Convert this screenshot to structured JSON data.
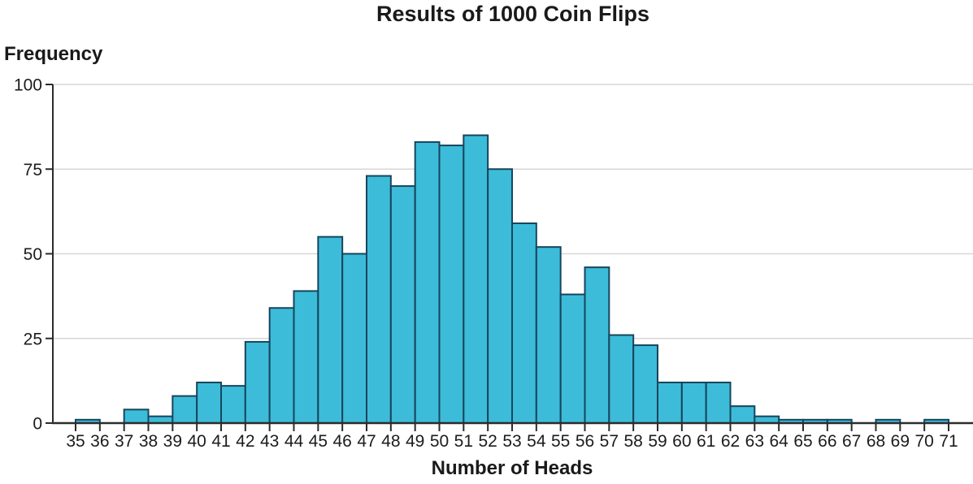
{
  "chart_data": {
    "type": "bar",
    "subtype": "histogram",
    "title": "Results of 1000 Coin Flips",
    "xlabel": "Number of Heads",
    "ylabel": "Frequency",
    "bin_start": 35,
    "bin_width": 1,
    "values": [
      1,
      0,
      4,
      2,
      8,
      12,
      11,
      24,
      34,
      39,
      55,
      50,
      73,
      70,
      83,
      82,
      85,
      75,
      59,
      52,
      38,
      46,
      26,
      23,
      12,
      12,
      12,
      5,
      2,
      1,
      1,
      1,
      0,
      1,
      0,
      1
    ],
    "x_ticks": [
      "35",
      "36",
      "37",
      "38",
      "39",
      "40",
      "41",
      "42",
      "43",
      "44",
      "45",
      "46",
      "47",
      "48",
      "49",
      "50",
      "51",
      "52",
      "53",
      "54",
      "55",
      "56",
      "57",
      "58",
      "59",
      "60",
      "61",
      "62",
      "63",
      "64",
      "65",
      "66",
      "67",
      "68",
      "69",
      "70",
      "71"
    ],
    "y_ticks": [
      "0",
      "25",
      "50",
      "75",
      "100"
    ],
    "ylim": [
      0,
      100
    ],
    "grid": "horizontal-only",
    "legend": "none",
    "colors": {
      "bar_fill": "#3cbcd9",
      "bar_stroke": "#17455c",
      "gridline": "#d7d7d7",
      "axis": "#2b2b2b",
      "text": "#1a1a1a",
      "background": "#ffffff"
    }
  }
}
